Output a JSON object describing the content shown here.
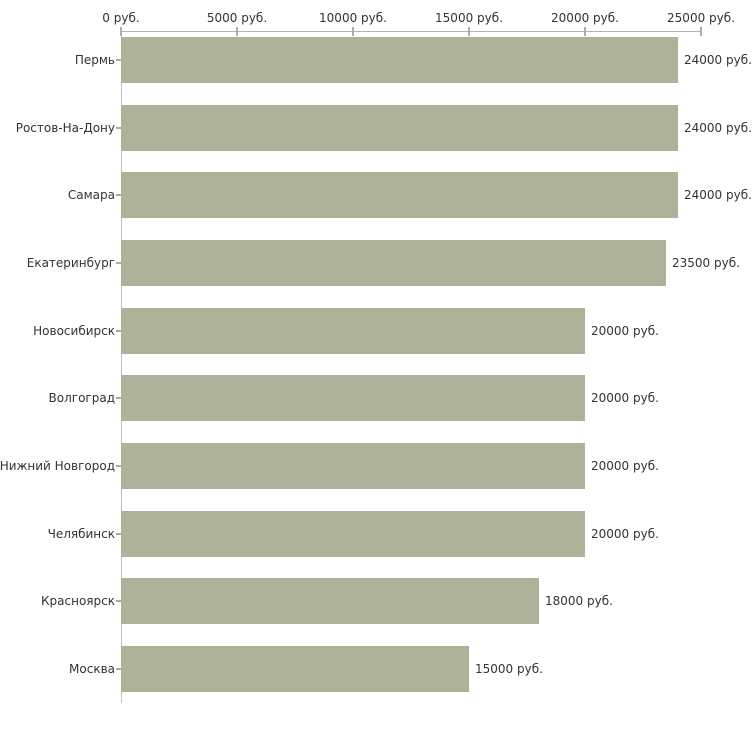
{
  "chart_data": {
    "type": "bar",
    "orientation": "horizontal",
    "title": "",
    "xlabel": "",
    "ylabel": "",
    "unit": "руб.",
    "categories": [
      "Пермь",
      "Ростов-На-Дону",
      "Самара",
      "Екатеринбург",
      "Новосибирск",
      "Волгоград",
      "Нижний Новгород",
      "Челябинск",
      "Красноярск",
      "Москва"
    ],
    "values": [
      24000,
      24000,
      24000,
      23500,
      20000,
      20000,
      20000,
      20000,
      18000,
      15000
    ],
    "value_labels": [
      "24000 руб.",
      "24000 руб.",
      "24000 руб.",
      "23500 руб.",
      "20000 руб.",
      "20000 руб.",
      "20000 руб.",
      "20000 руб.",
      "18000 руб.",
      "15000 руб."
    ],
    "x_ticks": [
      {
        "value": 0,
        "label": "0 руб."
      },
      {
        "value": 5000,
        "label": "5000 руб."
      },
      {
        "value": 10000,
        "label": "10000 руб."
      },
      {
        "value": 15000,
        "label": "15000 руб."
      },
      {
        "value": 20000,
        "label": "20000 руб."
      },
      {
        "value": 25000,
        "label": "25000 руб."
      }
    ],
    "xlim": [
      0,
      25000
    ],
    "grid": false,
    "legend": false,
    "axis_position": "top",
    "colors": {
      "bar": "#adb298",
      "axis_line": "#b3b3b3",
      "axis_line_vertical": "#c2c2c2",
      "tick": "#b1b18c",
      "row_tick": "#aeab94",
      "text": "#333333",
      "background": "#ffffff"
    }
  }
}
